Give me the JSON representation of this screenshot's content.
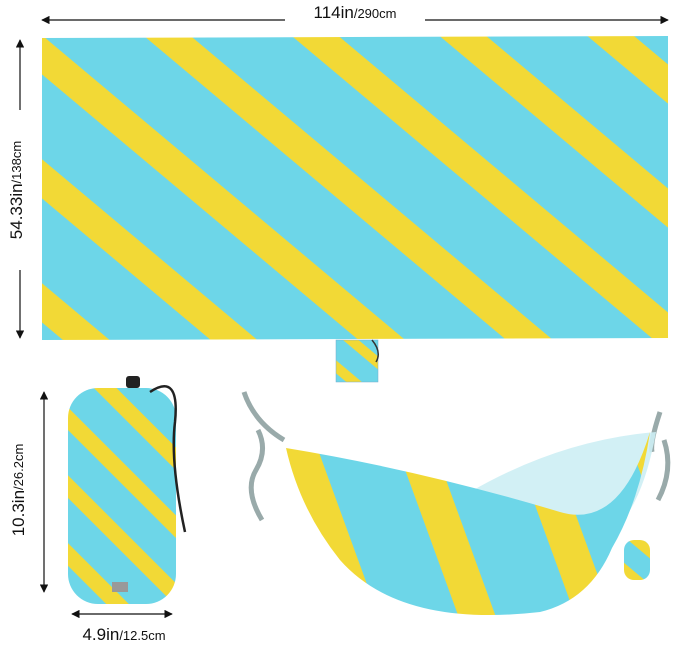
{
  "dimensions": {
    "sheet_width": {
      "main": "114in",
      "sub": "/290cm"
    },
    "sheet_height": {
      "main": "54.33in",
      "sub": "/138cm"
    },
    "bag_height": {
      "main": "10.3in",
      "sub": "/26.2cm"
    },
    "bag_width": {
      "main": "4.9in",
      "sub": "/12.5cm"
    }
  }
}
